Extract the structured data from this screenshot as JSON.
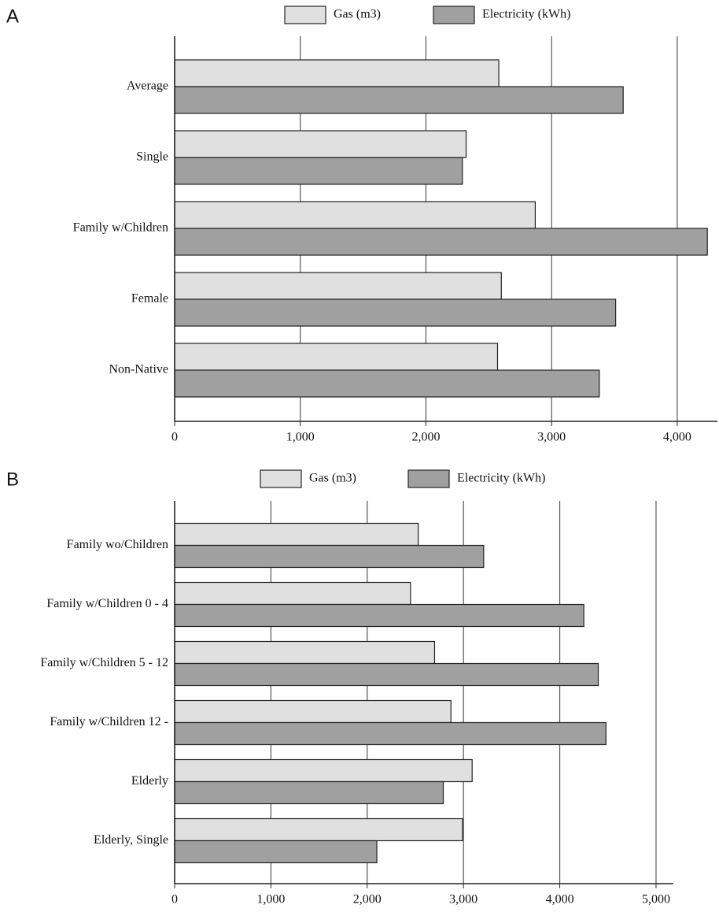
{
  "chart_data": [
    {
      "type": "bar",
      "orientation": "horizontal",
      "label": "A",
      "categories": [
        "Average",
        "Single",
        "Family w/Children",
        "Female",
        "Non-Native"
      ],
      "series": [
        {
          "name": "Gas (m3)",
          "color": "#e0e0e0",
          "values": [
            2580,
            2320,
            2870,
            2600,
            2570
          ]
        },
        {
          "name": "Electricity (kWh)",
          "color": "#a0a0a0",
          "values": [
            3570,
            2290,
            4240,
            3510,
            3380
          ]
        }
      ],
      "xlim": [
        0,
        4320
      ],
      "xticks": [
        0,
        {
          "value": 1000,
          "label": "1,000"
        },
        {
          "value": 2000,
          "label": "2,000"
        },
        {
          "value": 3000,
          "label": "3,000"
        },
        {
          "value": 4000,
          "label": "4,000"
        }
      ],
      "grid": true,
      "legend": "top"
    },
    {
      "type": "bar",
      "orientation": "horizontal",
      "label": "B",
      "categories": [
        "Family wo/Children",
        "Family w/Children 0 - 4",
        "Family w/Children 5 - 12",
        "Family w/Children 12 -",
        "Elderly",
        "Elderly, Single"
      ],
      "series": [
        {
          "name": "Gas (m3)",
          "color": "#e0e0e0",
          "values": [
            2530,
            2450,
            2700,
            2870,
            3090,
            2990
          ]
        },
        {
          "name": "Electricity (kWh)",
          "color": "#a0a0a0",
          "values": [
            3210,
            4250,
            4400,
            4480,
            2790,
            2100
          ]
        }
      ],
      "xlim": [
        0,
        5180
      ],
      "xticks": [
        0,
        {
          "value": 1000,
          "label": "1,000"
        },
        {
          "value": 2000,
          "label": "2,000"
        },
        {
          "value": 3000,
          "label": "3,000"
        },
        {
          "value": 4000,
          "label": "4,000"
        },
        {
          "value": 5000,
          "label": "5,000"
        }
      ],
      "grid": true,
      "legend": "top"
    }
  ]
}
